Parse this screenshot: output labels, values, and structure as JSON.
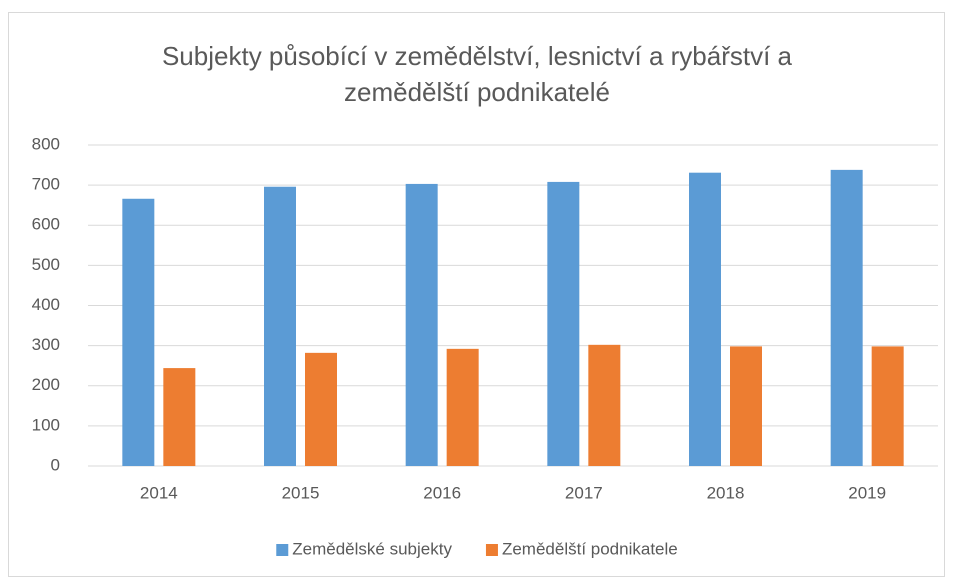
{
  "chart_data": {
    "type": "bar",
    "title": "Subjekty působící v zemědělství, lesnictví a rybářství a zemědělští podnikatelé",
    "categories": [
      "2014",
      "2015",
      "2016",
      "2017",
      "2018",
      "2019"
    ],
    "series": [
      {
        "name": "Zemědělské subjekty",
        "color": "#5b9bd5",
        "values": [
          666,
          696,
          703,
          708,
          731,
          738
        ]
      },
      {
        "name": "Zemědělští podnikatele",
        "color": "#ed7d31",
        "values": [
          244,
          282,
          292,
          302,
          298,
          298
        ]
      }
    ],
    "ylim": [
      0,
      800
    ],
    "yticks": [
      0,
      100,
      200,
      300,
      400,
      500,
      600,
      700,
      800
    ],
    "grid": true,
    "legend": "bottom"
  }
}
